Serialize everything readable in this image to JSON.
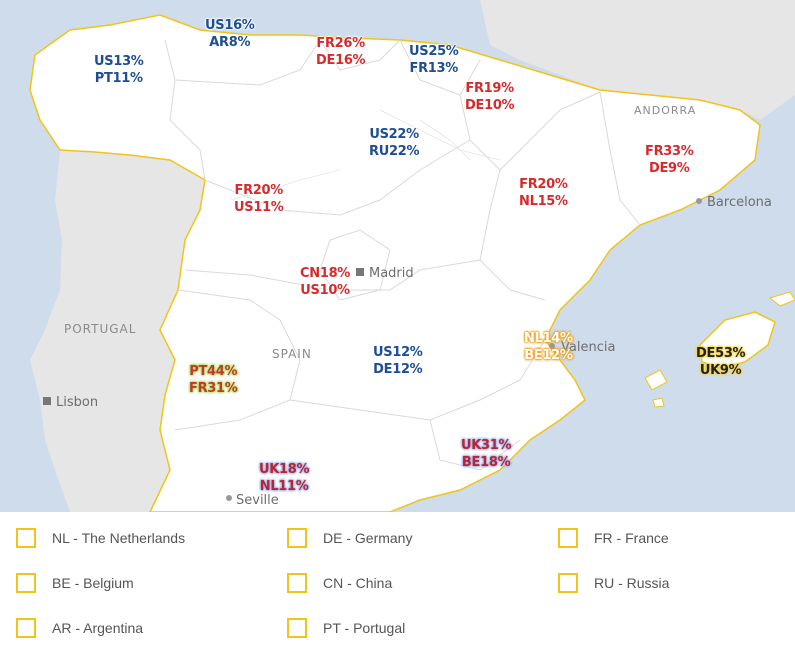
{
  "places": {
    "andorra": "ANDORRA",
    "barcelona": "Barcelona",
    "madrid": "Madrid",
    "portugal": "PORTUGAL",
    "spain": "SPAIN",
    "lisbon": "Lisbon",
    "valencia": "Valencia",
    "seville": "Seville"
  },
  "regions": [
    {
      "id": "galicia",
      "lines": [
        "US13%",
        "PT11%"
      ],
      "style": "blue"
    },
    {
      "id": "asturias",
      "lines": [
        "US16%",
        "AR8%"
      ],
      "style": "blue"
    },
    {
      "id": "cantabria",
      "lines": [
        "FR26%",
        "DE16%"
      ],
      "style": "red"
    },
    {
      "id": "basque",
      "lines": [
        "US25%",
        "FR13%"
      ],
      "style": "blue"
    },
    {
      "id": "navarra",
      "lines": [
        "FR19%",
        "DE10%"
      ],
      "style": "red"
    },
    {
      "id": "rioja",
      "lines": [
        "US22%",
        "RU22%"
      ],
      "style": "blue"
    },
    {
      "id": "catalonia",
      "lines": [
        "FR33%",
        "DE9%"
      ],
      "style": "red"
    },
    {
      "id": "aragon",
      "lines": [
        "FR20%",
        "NL15%"
      ],
      "style": "red"
    },
    {
      "id": "castilla-leon",
      "lines": [
        "FR20%",
        "US11%"
      ],
      "style": "red"
    },
    {
      "id": "madrid",
      "lines": [
        "CN18%",
        "US10%"
      ],
      "style": "red"
    },
    {
      "id": "valencia",
      "lines": [
        "NL14%",
        "BE12%"
      ],
      "style": "orange"
    },
    {
      "id": "balearic",
      "lines": [
        "DE53%",
        "UK9%"
      ],
      "style": "yellow"
    },
    {
      "id": "castilla-mancha",
      "lines": [
        "US12%",
        "DE12%"
      ],
      "style": "blue"
    },
    {
      "id": "extremadura",
      "lines": [
        "PT44%",
        "FR31%"
      ],
      "style": "green"
    },
    {
      "id": "murcia",
      "lines": [
        "UK31%",
        "BE18%"
      ],
      "style": "purple"
    },
    {
      "id": "andalusia",
      "lines": [
        "UK18%",
        "NL11%"
      ],
      "style": "purple"
    }
  ],
  "legend": [
    {
      "label": "NL - The Netherlands"
    },
    {
      "label": "DE - Germany"
    },
    {
      "label": "FR - France"
    },
    {
      "label": "BE - Belgium"
    },
    {
      "label": "CN - China"
    },
    {
      "label": "RU - Russia"
    },
    {
      "label": "AR - Argentina"
    },
    {
      "label": "PT - Portugal"
    }
  ],
  "colors": {
    "sea": "#cfdcec",
    "spain_land": "#ffffff",
    "neighbor_land": "#e6e6e6",
    "border": "#f0c419"
  }
}
